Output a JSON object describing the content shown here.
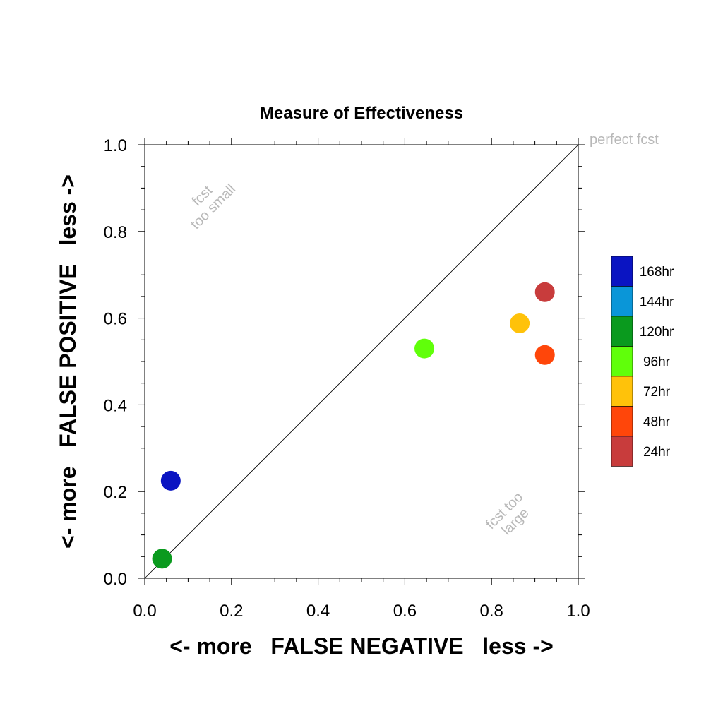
{
  "chart_data": {
    "type": "scatter",
    "title": "Measure of Effectiveness",
    "xlabel": "<- more   FALSE NEGATIVE   less ->",
    "ylabel": "<- more   FALSE POSITIVE   less ->",
    "xlim": [
      0.0,
      1.0
    ],
    "ylim": [
      0.0,
      1.0
    ],
    "x_ticks": [
      "0.0",
      "0.2",
      "0.4",
      "0.6",
      "0.8",
      "1.0"
    ],
    "y_ticks": [
      "0.0",
      "0.2",
      "0.4",
      "0.6",
      "0.8",
      "1.0"
    ],
    "grid": false,
    "diagonal_line": true,
    "annotations": {
      "top_right": "perfect fcst",
      "upper_left_line1": "fcst",
      "upper_left_line2": "too small",
      "lower_right_line1": "fcst too",
      "lower_right_line2": "large"
    },
    "legend": {
      "placement": "right",
      "entries": [
        {
          "label": "168hr",
          "color": "#0a14c2"
        },
        {
          "label": "144hr",
          "color": "#0a96d8"
        },
        {
          "label": "120hr",
          "color": "#0a9a1e"
        },
        {
          "label": "96hr",
          "color": "#60ff0a"
        },
        {
          "label": "72hr",
          "color": "#ffc20a"
        },
        {
          "label": "48hr",
          "color": "#ff460a"
        },
        {
          "label": "24hr",
          "color": "#c83c3c"
        }
      ]
    },
    "points": [
      {
        "series": "168hr",
        "x": 0.06,
        "y": 0.225,
        "color": "#0a14c2"
      },
      {
        "series": "120hr",
        "x": 0.04,
        "y": 0.045,
        "color": "#0a9a1e"
      },
      {
        "series": "96hr",
        "x": 0.645,
        "y": 0.53,
        "color": "#60ff0a"
      },
      {
        "series": "72hr",
        "x": 0.865,
        "y": 0.588,
        "color": "#ffc20a"
      },
      {
        "series": "48hr",
        "x": 0.923,
        "y": 0.515,
        "color": "#ff460a"
      },
      {
        "series": "24hr",
        "x": 0.923,
        "y": 0.66,
        "color": "#c83c3c"
      }
    ]
  }
}
